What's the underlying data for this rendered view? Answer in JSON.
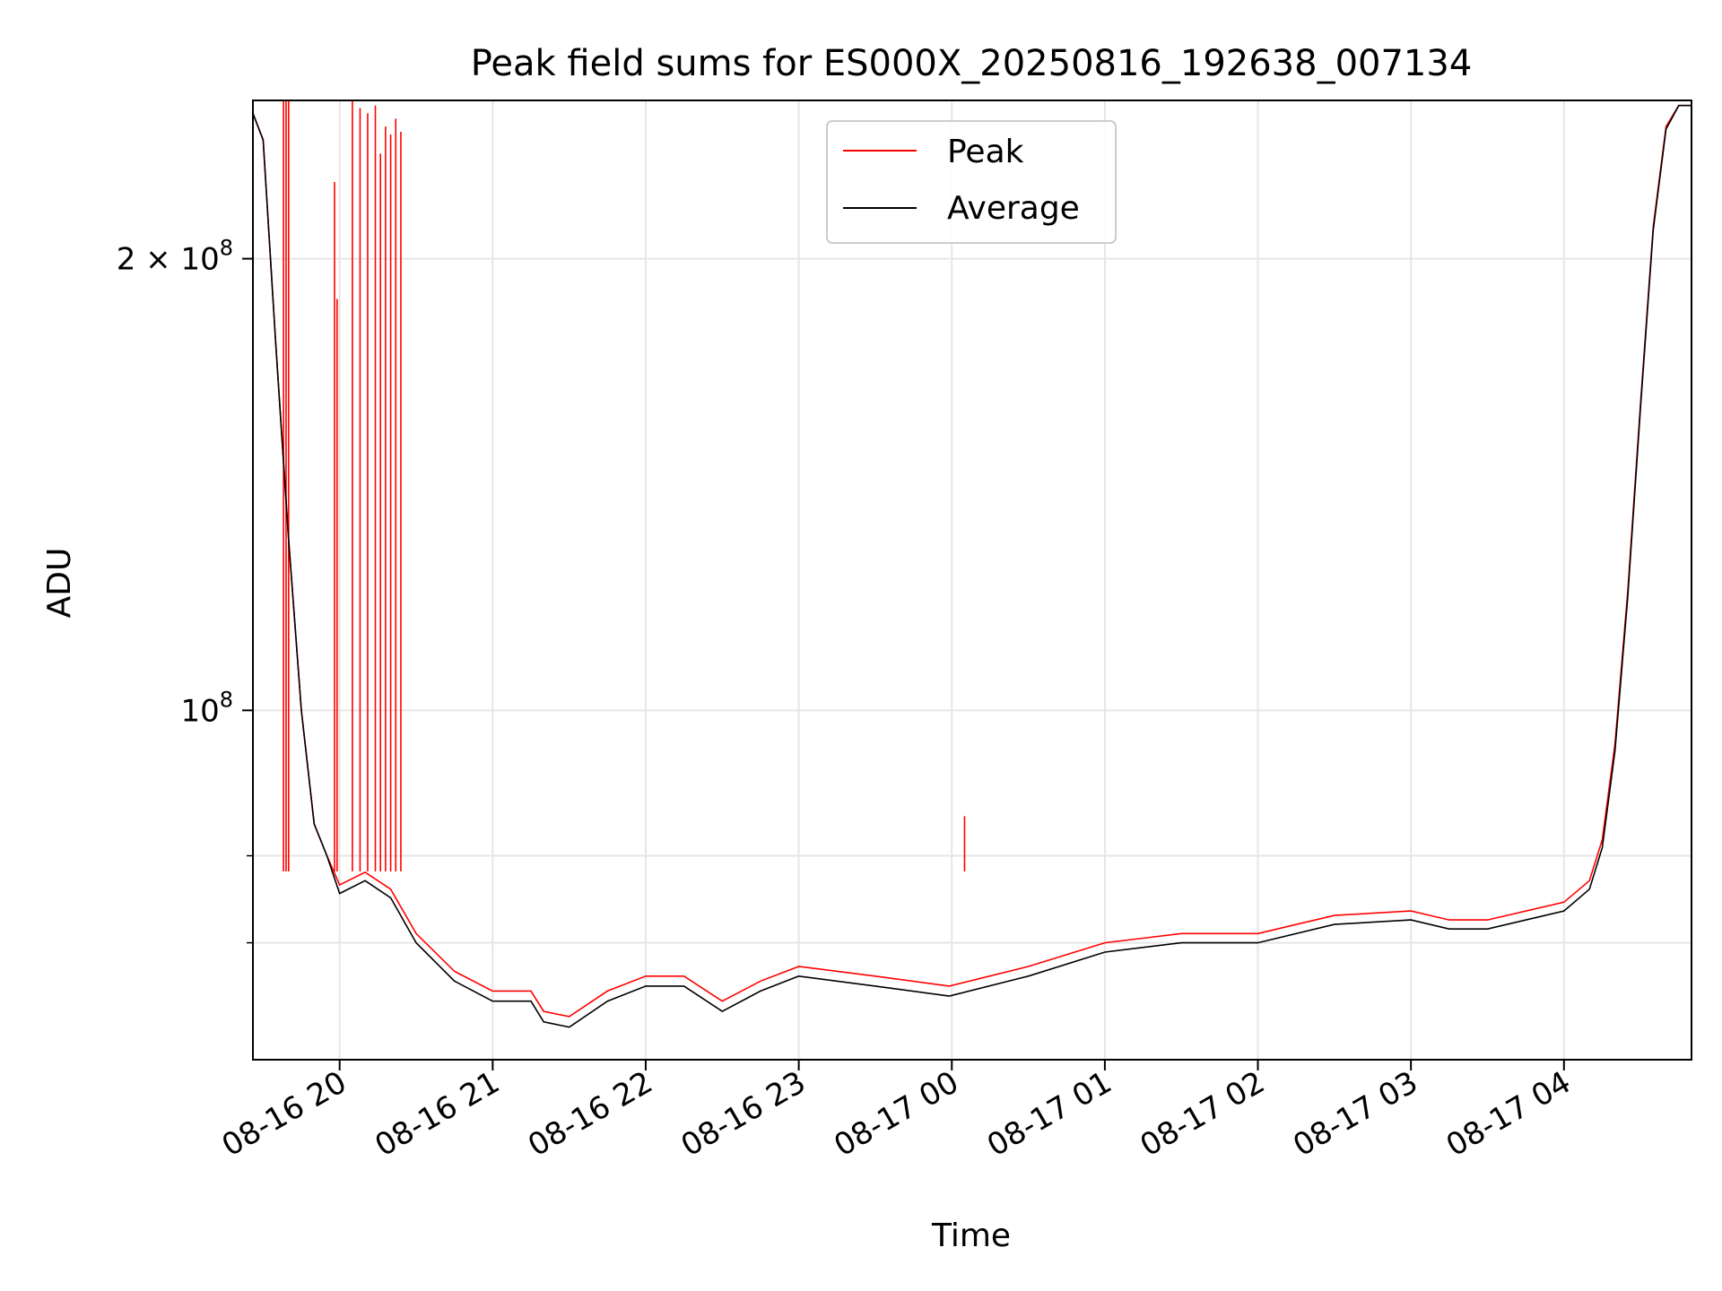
{
  "chart_data": {
    "type": "line",
    "title": "Peak field sums for ES000X_20250816_192638_007134",
    "xlabel": "Time",
    "ylabel": "ADU",
    "y_scale": "log",
    "ylim": [
      58500000,
      255000000
    ],
    "xlim": [
      "2025-08-16 19:26",
      "2025-08-17 04:50"
    ],
    "grid": true,
    "legend_position": "top-center",
    "x_ticks": [
      {
        "t": "2025-08-16 20:00",
        "label": "08-16 20"
      },
      {
        "t": "2025-08-16 21:00",
        "label": "08-16 21"
      },
      {
        "t": "2025-08-16 22:00",
        "label": "08-16 22"
      },
      {
        "t": "2025-08-16 23:00",
        "label": "08-16 23"
      },
      {
        "t": "2025-08-17 00:00",
        "label": "08-17 00"
      },
      {
        "t": "2025-08-17 01:00",
        "label": "08-17 01"
      },
      {
        "t": "2025-08-17 02:00",
        "label": "08-17 02"
      },
      {
        "t": "2025-08-17 03:00",
        "label": "08-17 03"
      },
      {
        "t": "2025-08-17 04:00",
        "label": "08-17 04"
      }
    ],
    "y_major_ticks": [
      {
        "value": 100000000,
        "label_base": "10",
        "label_exp": "8",
        "label_coef": ""
      },
      {
        "value": 200000000,
        "label_base": "10",
        "label_exp": "8",
        "label_coef": "2 × "
      }
    ],
    "y_minor_gridlines": [
      70000000,
      80000000
    ],
    "series": [
      {
        "name": "Peak",
        "color": "#ff0000",
        "x": [
          "2025-08-16 19:26",
          "2025-08-16 19:30",
          "2025-08-16 19:35",
          "2025-08-16 19:40",
          "2025-08-16 19:45",
          "2025-08-16 19:50",
          "2025-08-16 19:55",
          "2025-08-16 20:00",
          "2025-08-16 20:10",
          "2025-08-16 20:20",
          "2025-08-16 20:30",
          "2025-08-16 20:45",
          "2025-08-16 21:00",
          "2025-08-16 21:15",
          "2025-08-16 21:20",
          "2025-08-16 21:30",
          "2025-08-16 21:45",
          "2025-08-16 22:00",
          "2025-08-16 22:15",
          "2025-08-16 22:30",
          "2025-08-16 22:45",
          "2025-08-16 23:00",
          "2025-08-16 23:30",
          "2025-08-16 23:59",
          "2025-08-17 00:30",
          "2025-08-17 01:00",
          "2025-08-17 01:30",
          "2025-08-17 02:00",
          "2025-08-17 02:30",
          "2025-08-17 03:00",
          "2025-08-17 03:15",
          "2025-08-17 03:30",
          "2025-08-17 04:00",
          "2025-08-17 04:10",
          "2025-08-17 04:15",
          "2025-08-17 04:20",
          "2025-08-17 04:25",
          "2025-08-17 04:30",
          "2025-08-17 04:35",
          "2025-08-17 04:40",
          "2025-08-17 04:45",
          "2025-08-17 04:50"
        ],
        "y": [
          250000000,
          240000000,
          175000000,
          130000000,
          100000000,
          84000000,
          80000000,
          76500000,
          78000000,
          76000000,
          71000000,
          67000000,
          65000000,
          65000000,
          63000000,
          62500000,
          65000000,
          66500000,
          66500000,
          64000000,
          66000000,
          67500000,
          66500000,
          65500000,
          67500000,
          70000000,
          71000000,
          71000000,
          73000000,
          73500000,
          72500000,
          72500000,
          74500000,
          77000000,
          82000000,
          95000000,
          120000000,
          160000000,
          210000000,
          245000000,
          253000000,
          253000000
        ]
      },
      {
        "name": "Average",
        "color": "#000000",
        "x": [
          "2025-08-16 19:26",
          "2025-08-16 19:30",
          "2025-08-16 19:35",
          "2025-08-16 19:40",
          "2025-08-16 19:45",
          "2025-08-16 19:50",
          "2025-08-16 19:55",
          "2025-08-16 20:00",
          "2025-08-16 20:10",
          "2025-08-16 20:20",
          "2025-08-16 20:30",
          "2025-08-16 20:45",
          "2025-08-16 21:00",
          "2025-08-16 21:15",
          "2025-08-16 21:20",
          "2025-08-16 21:30",
          "2025-08-16 21:45",
          "2025-08-16 22:00",
          "2025-08-16 22:15",
          "2025-08-16 22:30",
          "2025-08-16 22:45",
          "2025-08-16 23:00",
          "2025-08-16 23:30",
          "2025-08-16 23:59",
          "2025-08-17 00:30",
          "2025-08-17 01:00",
          "2025-08-17 01:30",
          "2025-08-17 02:00",
          "2025-08-17 02:30",
          "2025-08-17 03:00",
          "2025-08-17 03:15",
          "2025-08-17 03:30",
          "2025-08-17 04:00",
          "2025-08-17 04:10",
          "2025-08-17 04:15",
          "2025-08-17 04:20",
          "2025-08-17 04:25",
          "2025-08-17 04:30",
          "2025-08-17 04:35",
          "2025-08-17 04:40",
          "2025-08-17 04:45",
          "2025-08-17 04:50"
        ],
        "y": [
          250000000,
          240000000,
          175000000,
          130000000,
          100000000,
          84000000,
          80000000,
          75500000,
          77000000,
          75000000,
          70000000,
          66000000,
          64000000,
          64000000,
          62000000,
          61500000,
          64000000,
          65500000,
          65500000,
          63000000,
          65000000,
          66500000,
          65500000,
          64500000,
          66500000,
          69000000,
          70000000,
          70000000,
          72000000,
          72500000,
          71500000,
          71500000,
          73500000,
          76000000,
          81000000,
          94000000,
          119000000,
          159000000,
          209000000,
          244000000,
          253000000,
          253000000
        ]
      }
    ],
    "peak_spikes": [
      {
        "t": "2025-08-16 19:38",
        "value": 255000000
      },
      {
        "t": "2025-08-16 19:39",
        "value": 255000000
      },
      {
        "t": "2025-08-16 19:40",
        "value": 255000000
      },
      {
        "t": "2025-08-16 19:58",
        "value": 225000000
      },
      {
        "t": "2025-08-16 19:59",
        "value": 188000000
      },
      {
        "t": "2025-08-16 20:05",
        "value": 255000000
      },
      {
        "t": "2025-08-16 20:08",
        "value": 252000000
      },
      {
        "t": "2025-08-16 20:11",
        "value": 250000000
      },
      {
        "t": "2025-08-16 20:14",
        "value": 253000000
      },
      {
        "t": "2025-08-16 20:16",
        "value": 235000000
      },
      {
        "t": "2025-08-16 20:18",
        "value": 245000000
      },
      {
        "t": "2025-08-16 20:20",
        "value": 242000000
      },
      {
        "t": "2025-08-16 20:22",
        "value": 248000000
      },
      {
        "t": "2025-08-16 20:24",
        "value": 243000000
      },
      {
        "t": "2025-08-17 00:05",
        "value": 85000000
      }
    ]
  }
}
